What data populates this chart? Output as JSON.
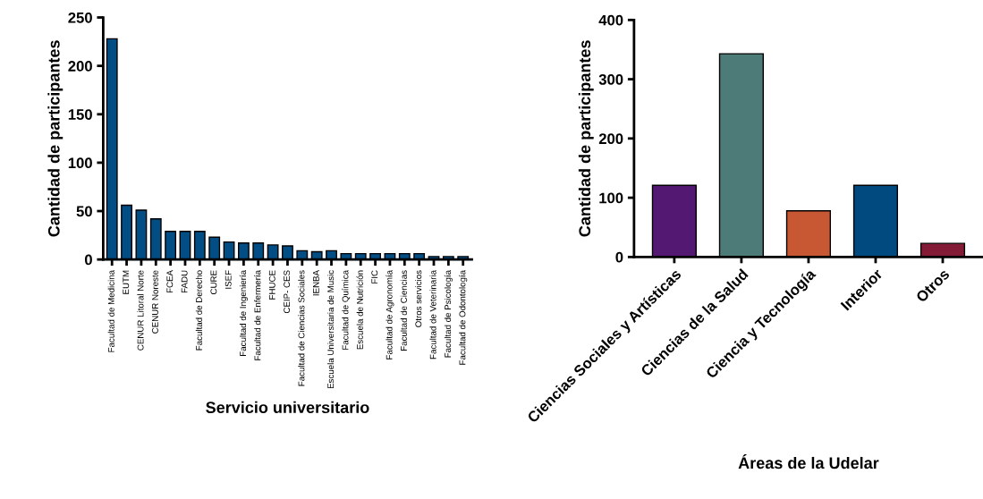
{
  "chart_data": [
    {
      "type": "bar",
      "xlabel": "Servicio universitario",
      "ylabel": "Cantidad de participantes",
      "categories": [
        "Facultad de Medicina",
        "EUTM",
        "CENUR Litoral Norte",
        "CENUR Noreste",
        "FCEA",
        "FADU",
        "Facultad de Derecho",
        "CURE",
        "ISEF",
        "Facultad de Ingeniería",
        "Facultad de Enfermería",
        "FHUCE",
        "CEIP- CES",
        "Facultad de Ciencias Sociales",
        "IENBA",
        "Escuela Universitaria de Music",
        "Facultad de Química",
        "Escuela de Nutrición",
        "FIC",
        "Facultad de Agronomía",
        "Facultad de Ciencias",
        "Otros servicios",
        "Facultad de Veterinaria",
        "Facultad de Psicología",
        "Facultad de Odontología"
      ],
      "values": [
        228,
        56,
        51,
        42,
        29,
        29,
        29,
        23,
        18,
        17,
        17,
        15,
        14,
        9,
        8,
        9,
        6,
        6,
        6,
        6,
        6,
        6,
        3,
        3,
        3
      ],
      "color": "#034d85",
      "ylim": [
        0,
        250
      ],
      "yticks": [
        0,
        50,
        100,
        150,
        200,
        250
      ],
      "grid": false,
      "legend": false
    },
    {
      "type": "bar",
      "xlabel": "Áreas de la Udelar",
      "ylabel": "Cantidad de participantes",
      "categories": [
        "Ciencias Sociales y Artísticas",
        "Ciencias de la Salud",
        "Ciencia y Tecnología",
        "Interior",
        "Otros"
      ],
      "values": [
        121,
        343,
        78,
        121,
        23
      ],
      "colors": [
        "#521872",
        "#4d7b78",
        "#c85834",
        "#004a80",
        "#841b36"
      ],
      "ylim": [
        0,
        400
      ],
      "yticks": [
        0,
        100,
        200,
        300,
        400
      ],
      "grid": false,
      "legend": false
    }
  ]
}
